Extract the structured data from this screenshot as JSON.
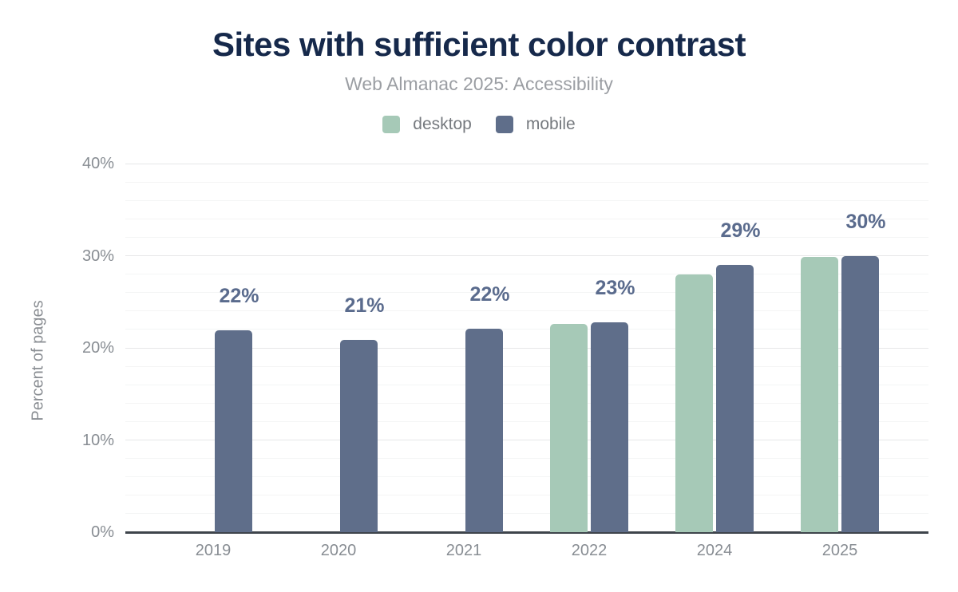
{
  "chart": {
    "title": "Sites with sufficient color contrast",
    "subtitle": "Web Almanac 2025: Accessibility",
    "ylabel": "Percent of pages"
  },
  "chart_data": {
    "type": "bar",
    "title": "Sites with sufficient color contrast",
    "subtitle": "Web Almanac 2025: Accessibility",
    "xlabel": "",
    "ylabel": "Percent of pages",
    "categories": [
      "2019",
      "2020",
      "2021",
      "2022",
      "2024",
      "2025"
    ],
    "series": [
      {
        "name": "desktop",
        "color": "#a6c9b7",
        "values": [
          null,
          null,
          null,
          22.6,
          28.0,
          29.9
        ]
      },
      {
        "name": "mobile",
        "color": "#5f6e8a",
        "values": [
          21.9,
          20.9,
          22.1,
          22.8,
          29.0,
          30.0
        ]
      }
    ],
    "data_labels": [
      "22%",
      "21%",
      "22%",
      "23%",
      "29%",
      "30%"
    ],
    "data_label_series": "mobile",
    "ylim": [
      0,
      40
    ],
    "yticks": [
      {
        "value": 0,
        "label": "0%"
      },
      {
        "value": 10,
        "label": "10%"
      },
      {
        "value": 20,
        "label": "20%"
      },
      {
        "value": 30,
        "label": "30%"
      },
      {
        "value": 40,
        "label": "40%"
      }
    ],
    "grid": {
      "orientation": "horizontal",
      "major_every": 10,
      "minor_every": 2
    },
    "legend": {
      "position": "top",
      "items": [
        {
          "label": "desktop",
          "color": "#a6c9b7"
        },
        {
          "label": "mobile",
          "color": "#5f6e8a"
        }
      ]
    }
  },
  "colors": {
    "title": "#16294b",
    "subtitle": "#9b9ea3",
    "axis_text": "#888d93",
    "data_label": "#5a6b8d",
    "axis_line": "#3e444b",
    "grid_major": "#e6e7e8",
    "grid_minor": "#f4f5f5",
    "desktop": "#a6c9b7",
    "mobile": "#5f6e8a"
  }
}
